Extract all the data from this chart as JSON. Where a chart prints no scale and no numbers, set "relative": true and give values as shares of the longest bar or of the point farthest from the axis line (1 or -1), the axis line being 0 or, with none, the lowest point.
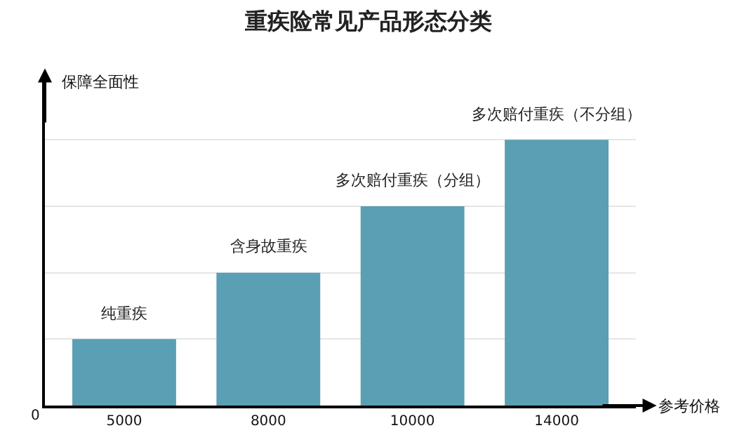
{
  "chart_data": {
    "type": "bar",
    "title": "重疾险常见产品形态分类",
    "xlabel": "参考价格",
    "ylabel": "保障全面性",
    "categories": [
      "5000",
      "8000",
      "10000",
      "14000"
    ],
    "values": [
      0.25,
      0.5,
      0.75,
      1
    ],
    "color": "#5a9fb3",
    "relative": true,
    "grid": "y",
    "annotations": [
      {
        "text": "纯重疾",
        "x": "5000",
        "y": 0.25
      },
      {
        "text": "含身故重疾",
        "x": "8000",
        "y": 0.5
      },
      {
        "text": "多次赔付重疾（分组）",
        "x": "10000",
        "y": 0.75
      },
      {
        "text": "多次赔付重疾（不分组）",
        "x": "14000",
        "y": 1
      },
      "0"
    ]
  }
}
